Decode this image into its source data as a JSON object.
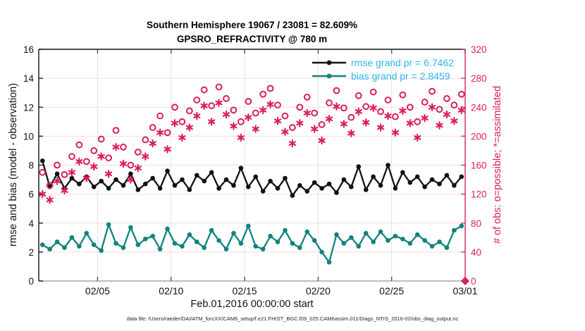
{
  "header": {
    "title_line1": "Southern Hemisphere 19067 / 23081 = 82.609%",
    "title_line2": "GPSRO_REFRACTIVITY @ 780 m"
  },
  "footer": {
    "data_file": "data file: /Users/raeder/DAI/ATM_forcXX/CAM6_setup/f.e21.FHIST_BGC.f09_025.CAM6assim.011/Diags_NTrS_2016-02/obs_diag_output.nc"
  },
  "colors": {
    "rmse": "#111111",
    "bias": "#0f837c",
    "obs_pink": "#db1e5f",
    "legend_text": "#2cb5ec",
    "grid_horizontal": "#f6dbe5",
    "grid_vertical": "#e3e6e2",
    "bottom_axis": "#cbb4c0",
    "tick_dark": "#444444"
  },
  "chart_data": {
    "type": "line",
    "title": "Southern Hemisphere 19067 / 23081 = 82.609%",
    "subtitle": "GPSRO_REFRACTIVITY @ 780 m",
    "xlabel": "Feb.01,2016 00:00:00 start",
    "x_ticks": [
      {
        "day": 4,
        "label": "02/05"
      },
      {
        "day": 9,
        "label": "02/10"
      },
      {
        "day": 14,
        "label": "02/15"
      },
      {
        "day": 19,
        "label": "02/20"
      },
      {
        "day": 24,
        "label": "02/25"
      },
      {
        "day": 29,
        "label": "03/01"
      }
    ],
    "x_range_days": [
      0,
      29
    ],
    "left_axis": {
      "label": "rmse and bias (model - observation)",
      "range": [
        0,
        16
      ],
      "ticks": [
        0,
        2,
        4,
        6,
        8,
        10,
        12,
        14,
        16
      ]
    },
    "right_axis": {
      "label": "# of obs: o=possible; *=assimilated",
      "range": [
        0,
        320
      ],
      "ticks": [
        0,
        40,
        80,
        120,
        160,
        200,
        240,
        280,
        320
      ]
    },
    "legend": {
      "rmse_label": "rmse grand pr = 6.7462",
      "bias_label": "bias grand pr = 2.8459"
    },
    "days": [
      0.25,
      0.75,
      1.25,
      1.75,
      2.25,
      2.75,
      3.25,
      3.75,
      4.25,
      4.75,
      5.25,
      5.75,
      6.25,
      6.75,
      7.25,
      7.75,
      8.25,
      8.75,
      9.25,
      9.75,
      10.25,
      10.75,
      11.25,
      11.75,
      12.25,
      12.75,
      13.25,
      13.75,
      14.25,
      14.75,
      15.25,
      15.75,
      16.25,
      16.75,
      17.25,
      17.75,
      18.25,
      18.75,
      19.25,
      19.75,
      20.25,
      20.75,
      21.25,
      21.75,
      22.25,
      22.75,
      23.25,
      23.75,
      24.25,
      24.75,
      25.25,
      25.75,
      26.25,
      26.75,
      27.25,
      27.75,
      28.25,
      28.75
    ],
    "series": [
      {
        "name": "rmse",
        "axis": "left",
        "style": "line-dot",
        "color": "#111111",
        "values": [
          8.3,
          6.5,
          7.4,
          6.4,
          7.1,
          6.7,
          7.2,
          6.5,
          6.9,
          6.4,
          7.0,
          6.6,
          7.4,
          6.3,
          6.7,
          7.1,
          6.4,
          7.6,
          6.6,
          7.0,
          6.3,
          7.3,
          6.9,
          7.5,
          6.4,
          7.0,
          6.6,
          7.8,
          6.5,
          7.2,
          6.2,
          6.9,
          6.4,
          7.1,
          5.9,
          6.6,
          6.2,
          6.8,
          6.4,
          6.7,
          6.1,
          7.0,
          6.5,
          7.9,
          6.3,
          7.2,
          6.6,
          8.0,
          6.4,
          7.5,
          6.8,
          7.2,
          6.5,
          7.0,
          6.7,
          7.3,
          6.6,
          7.2
        ]
      },
      {
        "name": "bias",
        "axis": "left",
        "style": "line-dot",
        "color": "#0f837c",
        "values": [
          2.5,
          2.2,
          2.7,
          2.3,
          3.0,
          2.4,
          3.3,
          2.5,
          2.1,
          3.9,
          2.6,
          2.3,
          3.7,
          2.5,
          2.9,
          3.1,
          2.2,
          3.6,
          2.6,
          2.4,
          3.2,
          2.7,
          2.3,
          3.5,
          2.8,
          2.2,
          3.3,
          2.6,
          3.8,
          2.4,
          2.2,
          3.1,
          2.7,
          3.5,
          2.6,
          2.3,
          3.4,
          2.8,
          2.0,
          1.3,
          3.2,
          2.6,
          3.0,
          2.4,
          3.3,
          2.7,
          3.4,
          2.8,
          3.1,
          2.9,
          2.6,
          3.2,
          2.8,
          2.4,
          2.7,
          2.3,
          3.5,
          3.8
        ]
      },
      {
        "name": "possible",
        "axis": "right",
        "style": "open-circle",
        "color": "#db1e5f",
        "values": [
          150,
          132,
          160,
          147,
          172,
          188,
          165,
          180,
          196,
          170,
          208,
          185,
          160,
          178,
          195,
          212,
          228,
          205,
          240,
          220,
          235,
          250,
          264,
          242,
          268,
          252,
          236,
          220,
          248,
          232,
          258,
          266,
          243,
          228,
          212,
          240,
          254,
          232,
          216,
          246,
          263,
          239,
          226,
          256,
          241,
          261,
          234,
          250,
          227,
          257,
          240,
          220,
          247,
          262,
          237,
          252,
          243,
          258
        ]
      },
      {
        "name": "assimilated",
        "axis": "right",
        "style": "asterisk",
        "color": "#db1e5f",
        "values": [
          120,
          112,
          138,
          125,
          150,
          165,
          142,
          158,
          172,
          148,
          185,
          162,
          140,
          156,
          172,
          190,
          205,
          182,
          218,
          198,
          212,
          228,
          242,
          220,
          246,
          230,
          214,
          198,
          226,
          210,
          236,
          244,
          221,
          206,
          190,
          218,
          232,
          210,
          194,
          224,
          241,
          217,
          204,
          234,
          219,
          239,
          212,
          228,
          205,
          235,
          218,
          198,
          225,
          240,
          215,
          230,
          221,
          236
        ]
      }
    ],
    "end_marker": {
      "day": 29,
      "value": 0,
      "axis": "right",
      "shape": "diamond",
      "color": "#db1e5f"
    }
  }
}
